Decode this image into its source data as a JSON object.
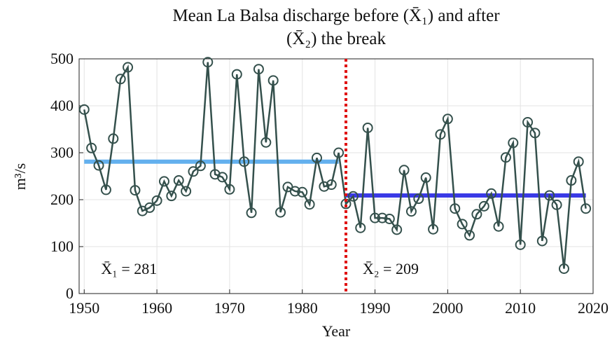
{
  "chart_data": {
    "type": "line",
    "title": "Mean La Balsa discharge before (X̄₁) and after (X̄₂) the break",
    "xlabel": "Year",
    "ylabel": "m³/s",
    "xlim": [
      1949.3,
      2020
    ],
    "ylim": [
      0,
      500
    ],
    "xticks": [
      1950,
      1960,
      1970,
      1980,
      1990,
      2000,
      2010,
      2020
    ],
    "yticks": [
      0,
      100,
      200,
      300,
      400,
      500
    ],
    "grid": true,
    "x": [
      1950,
      1951,
      1952,
      1953,
      1954,
      1955,
      1956,
      1957,
      1958,
      1959,
      1960,
      1961,
      1962,
      1963,
      1964,
      1965,
      1966,
      1967,
      1968,
      1969,
      1970,
      1971,
      1972,
      1973,
      1974,
      1975,
      1976,
      1977,
      1978,
      1979,
      1980,
      1981,
      1982,
      1983,
      1984,
      1985,
      1986,
      1987,
      1988,
      1989,
      1990,
      1991,
      1992,
      1993,
      1994,
      1995,
      1996,
      1997,
      1998,
      1999,
      2000,
      2001,
      2002,
      2003,
      2004,
      2005,
      2006,
      2007,
      2008,
      2009,
      2010,
      2011,
      2012,
      2013,
      2014,
      2015,
      2016,
      2017,
      2018,
      2019
    ],
    "series": [
      {
        "color": "#34504c",
        "values": [
          392,
          310,
          273,
          221,
          330,
          457,
          482,
          220,
          176,
          183,
          198,
          239,
          208,
          241,
          218,
          260,
          272,
          493,
          254,
          248,
          222,
          467,
          281,
          172,
          478,
          322,
          454,
          173,
          227,
          218,
          216,
          190,
          289,
          228,
          232,
          300,
          191,
          207,
          140,
          353,
          161,
          161,
          159,
          136,
          263,
          175,
          202,
          247,
          137,
          339,
          372,
          181,
          148,
          124,
          169,
          186,
          213,
          143,
          290,
          321,
          104,
          365,
          342,
          112,
          209,
          189,
          53,
          241,
          281,
          181
        ]
      }
    ],
    "reference_lines": [
      {
        "x": [
          1950,
          1985
        ],
        "value": 281,
        "color": "#63b0ee",
        "label": "X̄₁ = 281"
      },
      {
        "x": [
          1986,
          2019
        ],
        "value": 209,
        "color": "#3a3ae6",
        "label": "X̄₂ = 209"
      }
    ],
    "break_x": 1986,
    "break_color": "#e01010"
  }
}
